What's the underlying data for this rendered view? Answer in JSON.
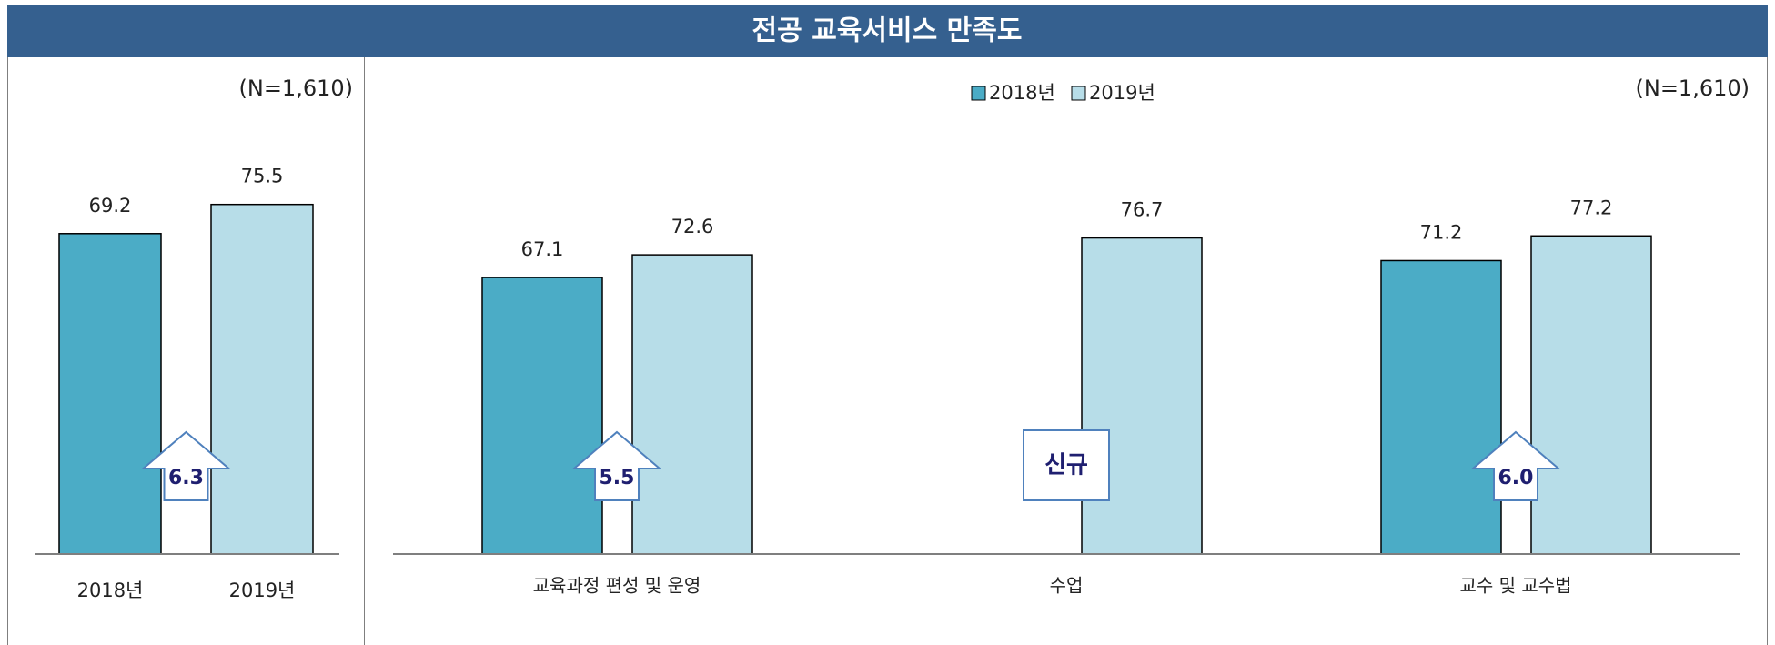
{
  "title": "전공 교육서비스 만족도",
  "chart_data": [
    {
      "type": "bar",
      "note": "(N=1,610)",
      "categories": [
        "2018년",
        "2019년"
      ],
      "values": [
        69.2,
        75.5
      ],
      "colors": [
        "#4bacc6",
        "#b7dde8"
      ],
      "ylim": [
        0,
        100
      ],
      "annotations": [
        "6.3"
      ]
    },
    {
      "type": "grouped-bar",
      "note": "(N=1,610)",
      "categories": [
        "교육과정 편성 및 운영",
        "수업",
        "교수 및 교수법"
      ],
      "series": [
        {
          "name": "2018년",
          "color": "#4bacc6",
          "values": [
            67.1,
            null,
            71.2
          ]
        },
        {
          "name": "2019년",
          "color": "#b7dde8",
          "values": [
            72.6,
            76.7,
            77.2
          ]
        }
      ],
      "ylim": [
        0,
        100
      ],
      "annotations": [
        "5.5",
        "신규",
        "6.0"
      ]
    }
  ]
}
